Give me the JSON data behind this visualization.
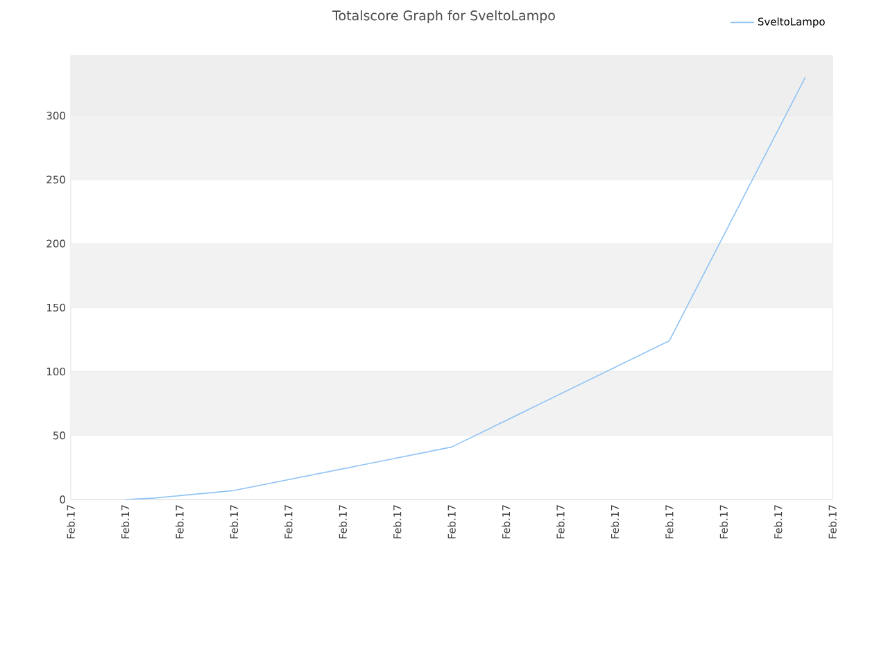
{
  "chart_data": {
    "type": "line",
    "title": "Totalscore Graph for SveltoLampo",
    "categories": [
      "Feb.17",
      null,
      "Feb.17",
      null,
      "Feb.17",
      null,
      "Feb.17",
      null,
      "Feb.17",
      null,
      "Feb.17",
      null,
      "Feb.17",
      null,
      "Feb.17",
      null,
      "Feb.17",
      null,
      "Feb.17",
      null,
      "Feb.17",
      null,
      "Feb.17",
      null,
      "Feb.17",
      null,
      "Feb.17",
      null,
      "Feb.17"
    ],
    "series": [
      {
        "name": "SveltoLampo",
        "color": "#90c3f5",
        "values": [
          null,
          null,
          0,
          1,
          null,
          null,
          7,
          null,
          null,
          null,
          null,
          null,
          null,
          null,
          41,
          null,
          null,
          null,
          null,
          null,
          null,
          null,
          124,
          null,
          null,
          null,
          null,
          330,
          null
        ]
      }
    ],
    "ylim": [
      0,
      347
    ],
    "yticks": [
      0,
      50,
      100,
      150,
      200,
      250,
      300
    ],
    "bands": [
      {
        "axis": "y",
        "from": 50,
        "to": 100,
        "color": "#f2f2f2"
      },
      {
        "axis": "y",
        "from": 150,
        "to": 200,
        "color": "#f2f2f2"
      },
      {
        "axis": "y",
        "from": 250,
        "to": 300,
        "color": "#f2f2f2"
      },
      {
        "axis": "y",
        "from": 300,
        "to": 347,
        "color": "#eeeeee"
      }
    ],
    "grid": "y",
    "legend": "top right",
    "marker": "none",
    "line_style": "solid"
  }
}
